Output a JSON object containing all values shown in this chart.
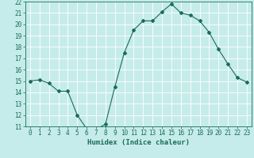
{
  "x": [
    0,
    1,
    2,
    3,
    4,
    5,
    6,
    7,
    8,
    9,
    10,
    11,
    12,
    13,
    14,
    15,
    16,
    17,
    18,
    19,
    20,
    21,
    22,
    23
  ],
  "y": [
    15.0,
    15.1,
    14.8,
    14.1,
    14.1,
    12.0,
    10.8,
    10.75,
    11.2,
    14.5,
    17.5,
    19.5,
    20.3,
    20.3,
    21.1,
    21.8,
    21.0,
    20.8,
    20.3,
    19.3,
    17.8,
    16.5,
    15.3,
    14.9
  ],
  "xlabel": "Humidex (Indice chaleur)",
  "ylim": [
    11,
    22
  ],
  "xlim": [
    -0.5,
    23.5
  ],
  "yticks": [
    11,
    12,
    13,
    14,
    15,
    16,
    17,
    18,
    19,
    20,
    21,
    22
  ],
  "xticks": [
    0,
    1,
    2,
    3,
    4,
    5,
    6,
    7,
    8,
    9,
    10,
    11,
    12,
    13,
    14,
    15,
    16,
    17,
    18,
    19,
    20,
    21,
    22,
    23
  ],
  "line_color": "#1a6b5a",
  "marker": "D",
  "marker_size": 2.0,
  "bg_color": "#c5ecea",
  "grid_color": "#ffffff",
  "axis_color": "#1a6b5a",
  "label_color": "#1a6b5a",
  "tick_color": "#1a6b5a",
  "xlabel_fontsize": 6.5,
  "tick_fontsize": 5.5
}
